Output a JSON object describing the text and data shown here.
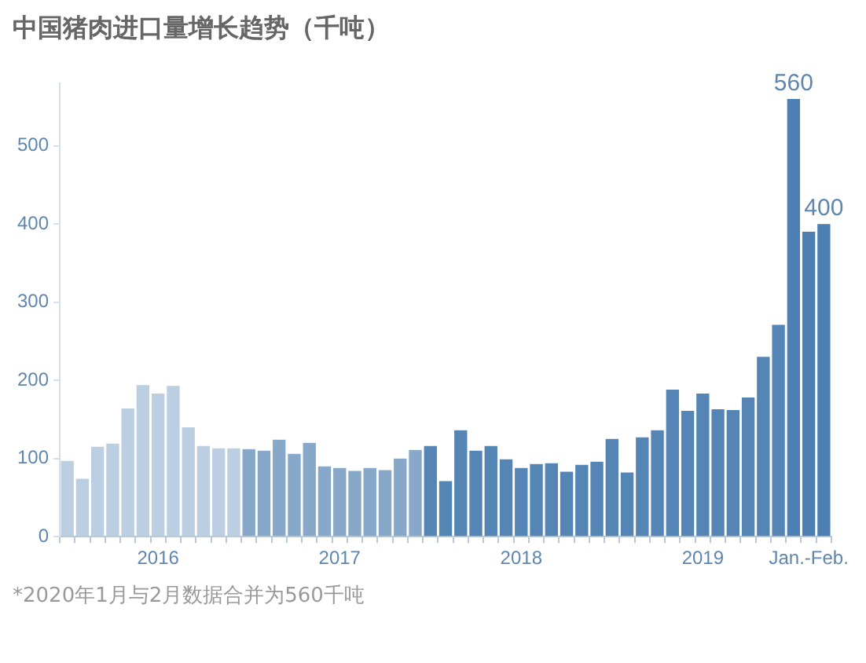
{
  "chart_data": {
    "type": "bar",
    "title": "中国猪肉进口量增长趋势（千吨）",
    "categories": [
      null,
      null,
      null,
      null,
      null,
      null,
      "2016",
      null,
      null,
      null,
      null,
      null,
      null,
      null,
      null,
      null,
      null,
      null,
      "2017",
      null,
      null,
      null,
      null,
      null,
      null,
      null,
      null,
      null,
      null,
      null,
      "2018",
      null,
      null,
      null,
      null,
      null,
      null,
      null,
      null,
      null,
      null,
      null,
      "2019",
      null,
      null,
      null,
      null,
      null,
      null,
      "Jan.-Feb.",
      null
    ],
    "values": [
      97,
      74,
      115,
      119,
      164,
      194,
      183,
      193,
      140,
      116,
      113,
      113,
      112,
      110,
      124,
      106,
      120,
      90,
      88,
      84,
      88,
      85,
      100,
      111,
      116,
      71,
      136,
      110,
      116,
      99,
      88,
      93,
      94,
      83,
      92,
      96,
      125,
      82,
      127,
      136,
      188,
      161,
      183,
      163,
      162,
      178,
      230,
      271,
      560,
      390,
      400
    ],
    "colors": [
      "#bccfe2",
      "#bccfe2",
      "#bccfe2",
      "#bccfe2",
      "#bccfe2",
      "#bccfe2",
      "#bccfe2",
      "#bccfe2",
      "#bccfe2",
      "#bccfe2",
      "#bccfe2",
      "#bccfe2",
      "#87a8c9",
      "#87a8c9",
      "#87a8c9",
      "#87a8c9",
      "#87a8c9",
      "#87a8c9",
      "#87a8c9",
      "#87a8c9",
      "#87a8c9",
      "#87a8c9",
      "#87a8c9",
      "#87a8c9",
      "#5585b5",
      "#5585b5",
      "#5585b5",
      "#5585b5",
      "#5585b5",
      "#5585b5",
      "#5585b5",
      "#5585b5",
      "#5585b5",
      "#5585b5",
      "#5585b5",
      "#5585b5",
      "#5585b5",
      "#5585b5",
      "#5585b5",
      "#5585b5",
      "#5585b5",
      "#5585b5",
      "#5585b5",
      "#5585b5",
      "#5585b5",
      "#5585b5",
      "#5585b5",
      "#5585b5",
      "#4d7fb2",
      "#4d7fb2",
      "#4d7fb2"
    ],
    "value_labels": [
      null,
      null,
      null,
      null,
      null,
      null,
      null,
      null,
      null,
      null,
      null,
      null,
      null,
      null,
      null,
      null,
      null,
      null,
      null,
      null,
      null,
      null,
      null,
      null,
      null,
      null,
      null,
      null,
      null,
      null,
      null,
      null,
      null,
      null,
      null,
      null,
      null,
      null,
      null,
      null,
      null,
      null,
      null,
      null,
      null,
      null,
      null,
      null,
      "560",
      null,
      "400"
    ],
    "ylim": [
      0,
      580
    ],
    "yticks": [
      0,
      100,
      200,
      300,
      400,
      500
    ],
    "grid": false,
    "legend": false,
    "annotations": [
      "*2020年1月与2月数据合并为560千吨"
    ]
  }
}
